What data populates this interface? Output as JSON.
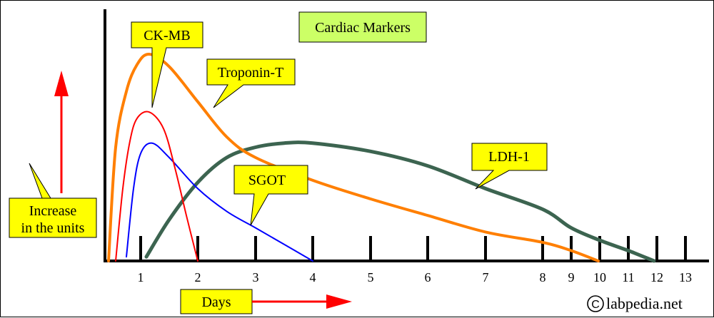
{
  "chart_data": {
    "type": "line",
    "title": "Cardiac Markers",
    "xlabel": "Days",
    "ylabel": "Increase in the units",
    "x_ticks": [
      "1",
      "2",
      "3",
      "4",
      "5",
      "6",
      "7",
      "8",
      "9",
      "10",
      "11",
      "12",
      "13"
    ],
    "xlim": [
      0,
      13.5
    ],
    "ylim": [
      0,
      1
    ],
    "grid": false,
    "series": [
      {
        "name": "Troponin-T",
        "color": "#ff7f00",
        "label_at": [
          1.6,
          0.71
        ],
        "points": [
          [
            0.1,
            0.0
          ],
          [
            0.3,
            0.55
          ],
          [
            0.6,
            0.82
          ],
          [
            0.9,
            0.95
          ],
          [
            1.15,
            1.0
          ],
          [
            1.5,
            0.94
          ],
          [
            2.0,
            0.77
          ],
          [
            2.5,
            0.6
          ],
          [
            3.0,
            0.5
          ],
          [
            4.0,
            0.39
          ],
          [
            5.0,
            0.3
          ],
          [
            6.0,
            0.22
          ],
          [
            7.0,
            0.14
          ],
          [
            8.0,
            0.09
          ],
          [
            9.0,
            0.05
          ],
          [
            9.95,
            0.0
          ]
        ]
      },
      {
        "name": "CK-MB",
        "color": "#ff0000",
        "label_at": [
          1.15,
          0.72
        ],
        "points": [
          [
            0.3,
            0.0
          ],
          [
            0.5,
            0.35
          ],
          [
            0.7,
            0.58
          ],
          [
            0.9,
            0.69
          ],
          [
            1.15,
            0.72
          ],
          [
            1.4,
            0.64
          ],
          [
            1.6,
            0.45
          ],
          [
            1.8,
            0.22
          ],
          [
            2.0,
            0.0
          ]
        ]
      },
      {
        "name": "SGOT",
        "color": "#0000ff",
        "label_at": [
          2.7,
          0.16
        ],
        "points": [
          [
            0.6,
            0.02
          ],
          [
            0.8,
            0.35
          ],
          [
            1.0,
            0.52
          ],
          [
            1.2,
            0.57
          ],
          [
            1.5,
            0.5
          ],
          [
            2.0,
            0.35
          ],
          [
            2.5,
            0.24
          ],
          [
            3.0,
            0.16
          ],
          [
            3.5,
            0.08
          ],
          [
            4.0,
            0.0
          ]
        ]
      },
      {
        "name": "LDH-1",
        "color": "#3c6450",
        "label_at": [
          7.0,
          0.35
        ],
        "points": [
          [
            1.1,
            0.02
          ],
          [
            1.5,
            0.2
          ],
          [
            2.0,
            0.38
          ],
          [
            2.5,
            0.5
          ],
          [
            3.0,
            0.55
          ],
          [
            3.5,
            0.57
          ],
          [
            4.0,
            0.57
          ],
          [
            5.0,
            0.53
          ],
          [
            6.0,
            0.46
          ],
          [
            7.0,
            0.35
          ],
          [
            8.0,
            0.25
          ],
          [
            9.0,
            0.16
          ],
          [
            10.0,
            0.1
          ],
          [
            11.0,
            0.05
          ],
          [
            11.9,
            0.0
          ]
        ]
      }
    ]
  },
  "callouts": {
    "ck_mb": "CK-MB",
    "troponin": "Troponin-T",
    "sgot": "SGOT",
    "ldh": "LDH-1",
    "title": "Cardiac Markers",
    "ylabel_line1": "Increase",
    "ylabel_line2": "in the units",
    "xlabel": "Days"
  },
  "credit": {
    "symbol": "C",
    "text": "labpedia.net"
  },
  "colors": {
    "callout_fill": "#ffff00",
    "title_fill": "#ccff66",
    "arrow": "#ff0000",
    "axis": "#000000"
  }
}
